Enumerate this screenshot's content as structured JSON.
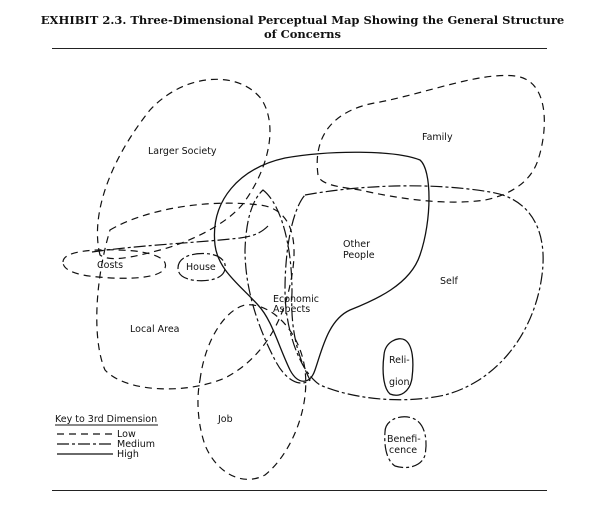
{
  "title": {
    "line1": "EXHIBIT 2.3. Three-Dimensional Perceptual Map Showing the General Structure",
    "line2": "of Concerns"
  },
  "regions": {
    "larger_society": "Larger Society",
    "family": "Family",
    "other_people": [
      "Other",
      "People"
    ],
    "self": "Self",
    "costs": "Costs",
    "house": "House",
    "economic_aspects": [
      "Economic",
      "Aspects"
    ],
    "local_area": "Local Area",
    "religion": [
      "Reli-",
      "gion"
    ],
    "job": "Job",
    "beneficence": [
      "Benefi-",
      "cence"
    ]
  },
  "key": {
    "title": "Key to 3rd Dimension",
    "low": "Low",
    "medium": "Medium",
    "high": "High"
  }
}
